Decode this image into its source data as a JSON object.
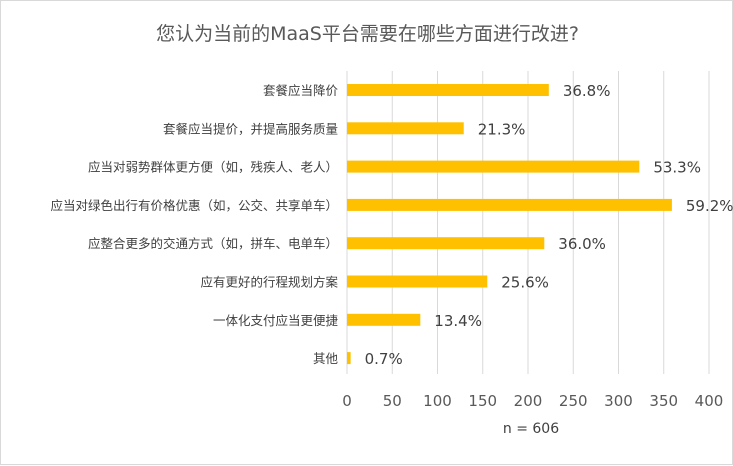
{
  "chart_data": {
    "type": "bar",
    "orientation": "horizontal",
    "title": "您认为当前的MaaS平台需要在哪些方面进行改进?",
    "categories": [
      "套餐应当降价",
      "套餐应当提价，并提高服务质量",
      "应当对弱势群体更方便（如，残疾人、老人）",
      "应当对绿色出行有价格优惠（如，公交、共享单车）",
      "应整合更多的交通方式（如，拼车、电单车）",
      "应有更好的行程规划方案",
      "一体化支付应当更便捷",
      "其他"
    ],
    "values": [
      223,
      129,
      323,
      359,
      218,
      155,
      81,
      4
    ],
    "data_labels": [
      "36.8%",
      "21.3%",
      "53.3%",
      "59.2%",
      "36.0%",
      "25.6%",
      "13.4%",
      "0.7%"
    ],
    "xlim": [
      0,
      400
    ],
    "xticks": [
      0,
      50,
      100,
      150,
      200,
      250,
      300,
      350,
      400
    ],
    "grid": "vertical",
    "legend": "none",
    "bar_color": "#FFC000",
    "note": "n = 606"
  }
}
